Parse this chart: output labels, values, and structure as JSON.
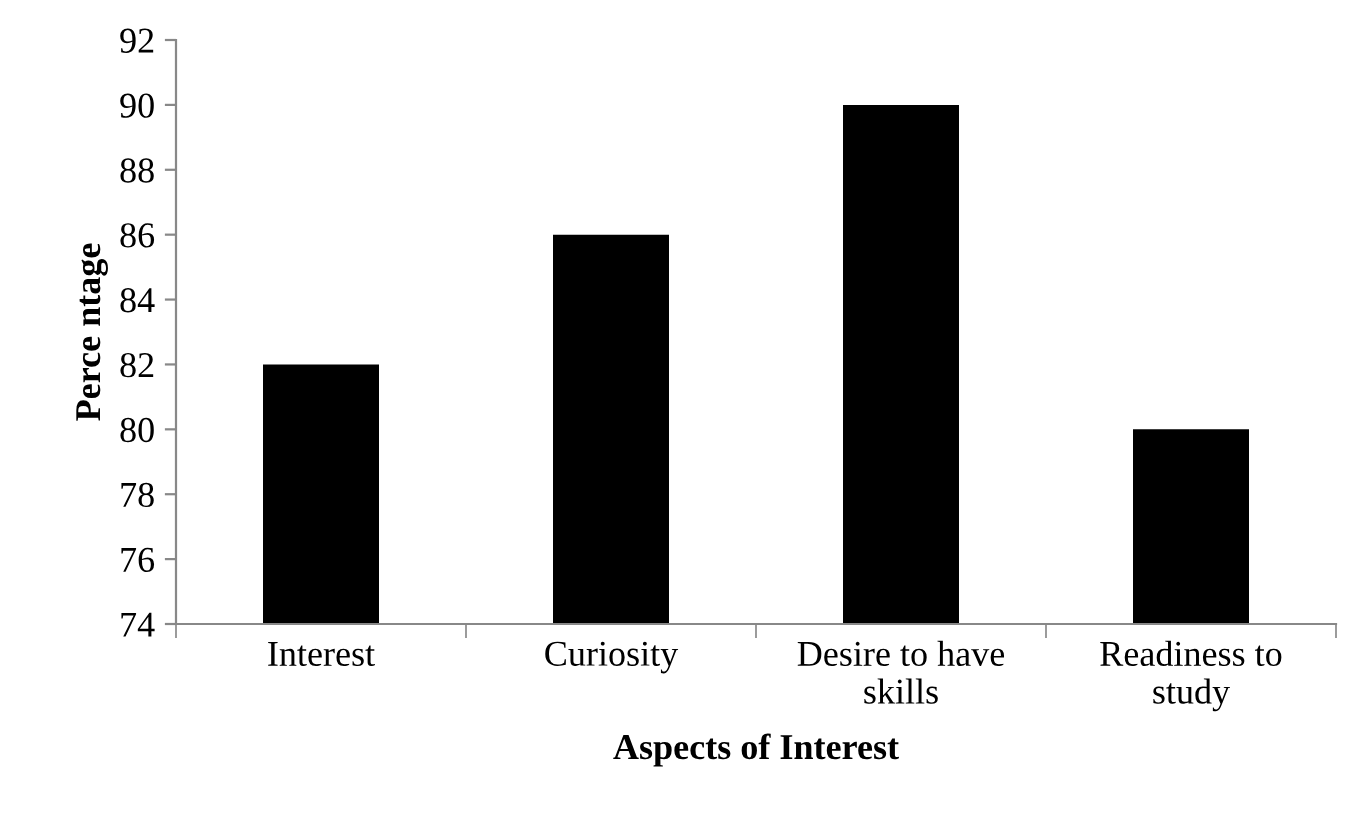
{
  "chart_data": {
    "type": "bar",
    "xlabel": "Aspects of Interest",
    "ylabel": "Perce ntage",
    "categories": [
      "Interest",
      "Curiosity",
      "Desire to have\nskills",
      "Readiness to\nstudy"
    ],
    "values": [
      82,
      86,
      90,
      80
    ],
    "color": "#000000",
    "ylim": [
      74,
      92
    ],
    "yticks": [
      74,
      76,
      78,
      80,
      82,
      84,
      86,
      88,
      90,
      92
    ],
    "grid": false
  }
}
